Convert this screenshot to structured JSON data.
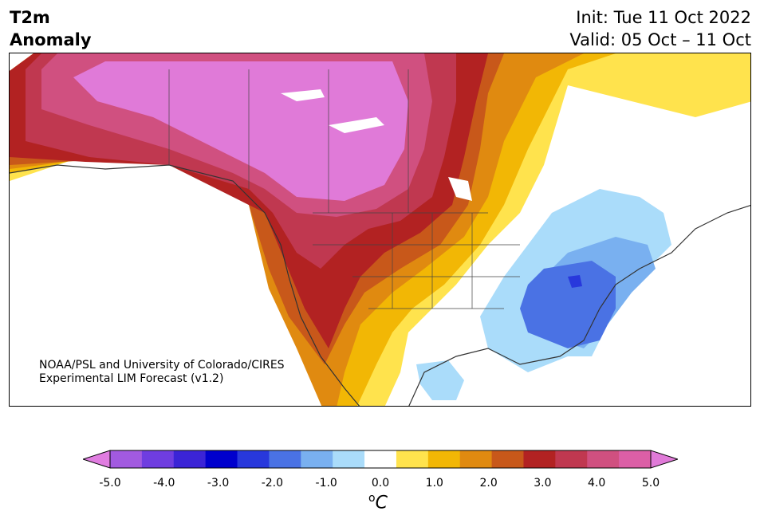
{
  "title": {
    "line1": "T2m",
    "line2": "Anomaly"
  },
  "forecast": {
    "init": "Init: Tue 11 Oct 2022",
    "valid": "Valid: 05 Oct – 11 Oct"
  },
  "credit": {
    "line1": "NOAA/PSL and University of Colorado/CIRES",
    "line2": "Experimental LIM Forecast (v1.2)"
  },
  "colorbar": {
    "ticks": [
      "-5.0",
      "-4.0",
      "-3.0",
      "-2.0",
      "-1.0",
      "0.0",
      "1.0",
      "2.0",
      "3.0",
      "4.0",
      "5.0"
    ],
    "unit_sup": "o",
    "unit": "C",
    "colors": [
      "#e07de0",
      "#a25ae0",
      "#6f3de0",
      "#3b24d6",
      "#0000cd",
      "#2838dc",
      "#4a72e4",
      "#79b0f0",
      "#aadcfa",
      "#ffffff",
      "#ffe34d",
      "#f2b705",
      "#e08a10",
      "#c8581a",
      "#b22222",
      "#c03850",
      "#d05080",
      "#dc5fa6",
      "#e07ad8"
    ]
  }
}
